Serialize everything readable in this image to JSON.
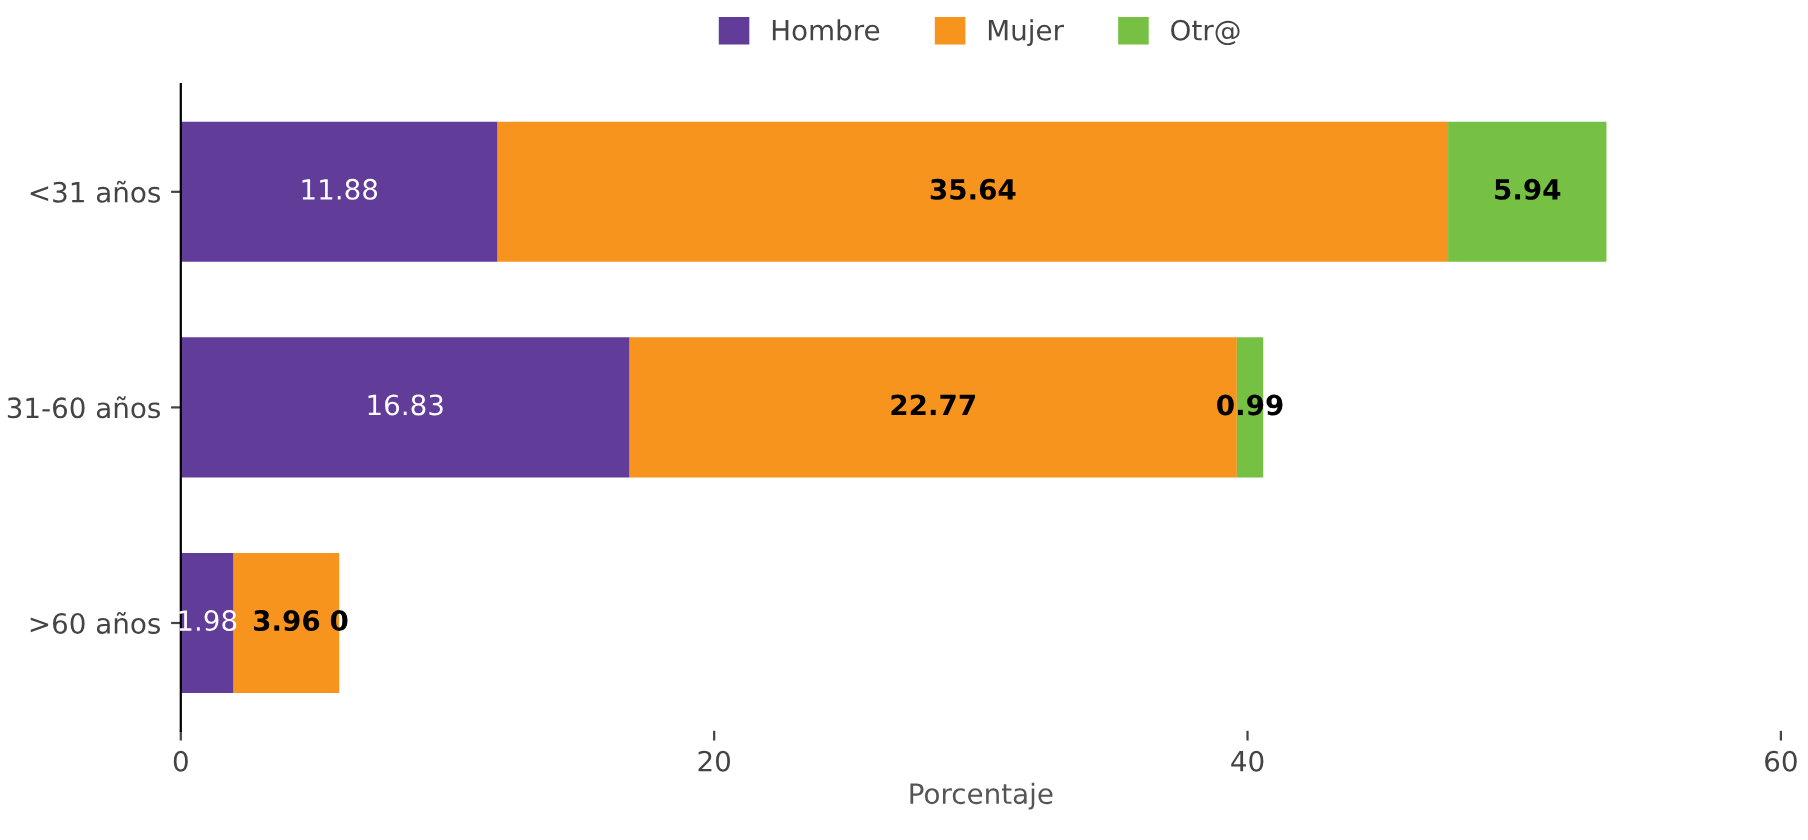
{
  "chart_data": {
    "type": "bar",
    "orientation": "horizontal",
    "stacked": true,
    "xlabel": "Porcentaje",
    "categories": [
      "<31 años",
      "31-60 años",
      ">60 años"
    ],
    "series": [
      {
        "name": "Hombre",
        "color": "#613d99",
        "values": [
          11.88,
          16.83,
          1.98
        ]
      },
      {
        "name": "Mujer",
        "color": "#f7941d",
        "values": [
          35.64,
          22.77,
          3.96
        ]
      },
      {
        "name": "Otr@",
        "color": "#76c043",
        "values": [
          5.94,
          0.99,
          0
        ]
      }
    ],
    "xlim": [
      0,
      60
    ],
    "xticks": [
      0,
      20,
      40,
      60
    ],
    "data_labels": true,
    "legend": "top",
    "grid": false
  }
}
